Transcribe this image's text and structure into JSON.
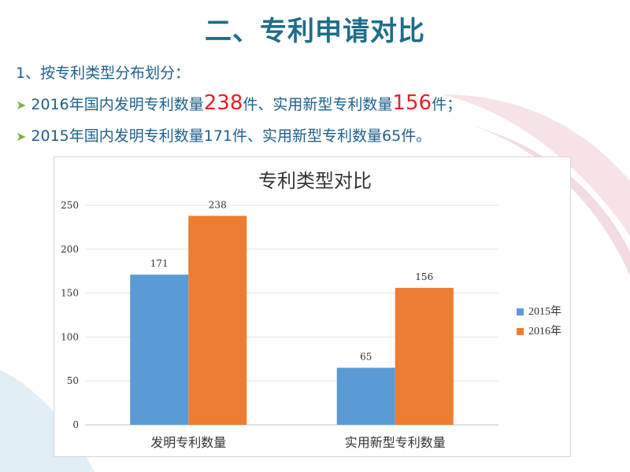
{
  "slide": {
    "title": "二、专利申请对比",
    "subtitle": "1、按专利类型分布划分：",
    "bullet1": {
      "prefix": "2016年国内发明专利数量",
      "num1": "238",
      "mid": "件、实用新型专利数量",
      "num2": "156",
      "suffix": "件；"
    },
    "bullet2": "2015年国内发明专利数量171件、实用新型专利数量65件。"
  },
  "colors": {
    "series2015": "#5b9bd5",
    "series2016": "#ed7d31",
    "title": "#1f6d8a",
    "highlight": "#e8202a"
  },
  "chart_data": {
    "type": "bar",
    "title": "专利类型对比",
    "categories": [
      "发明专利数量",
      "实用新型专利数量"
    ],
    "series": [
      {
        "name": "2015年",
        "values": [
          171,
          65
        ]
      },
      {
        "name": "2016年",
        "values": [
          238,
          156
        ]
      }
    ],
    "ylim": [
      0,
      250
    ],
    "yticks": [
      0,
      50,
      100,
      150,
      200,
      250
    ],
    "grid": true,
    "legend": "right"
  }
}
